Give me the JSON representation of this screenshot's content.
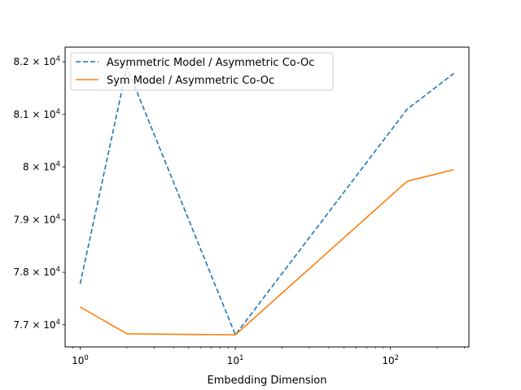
{
  "chart_data": {
    "type": "line",
    "xlabel": "Embedding Dimension",
    "ylabel": "",
    "xscale": "log",
    "xlim": [
      0.8,
      320
    ],
    "ylim": [
      76580,
      82280
    ],
    "x_ticks": [
      {
        "value": 1,
        "base": "10",
        "exp": "0"
      },
      {
        "value": 10,
        "base": "10",
        "exp": "1"
      },
      {
        "value": 100,
        "base": "10",
        "exp": "2"
      }
    ],
    "y_ticks": [
      {
        "value": 77000,
        "mantissa": "7.7",
        "base": "10",
        "exp": "4"
      },
      {
        "value": 78000,
        "mantissa": "7.8",
        "base": "10",
        "exp": "4"
      },
      {
        "value": 79000,
        "mantissa": "7.9",
        "base": "10",
        "exp": "4"
      },
      {
        "value": 80000,
        "mantissa": "8",
        "base": "10",
        "exp": "4"
      },
      {
        "value": 81000,
        "mantissa": "8.1",
        "base": "10",
        "exp": "4"
      },
      {
        "value": 82000,
        "mantissa": "8.2",
        "base": "10",
        "exp": "4"
      }
    ],
    "legend_position": "top-left",
    "grid": false,
    "series": [
      {
        "name": "Asymmetric Model / Asymmetric Co-Oc",
        "color": "#1f77b4",
        "dash": "dashed",
        "x": [
          1,
          2,
          10,
          128,
          256
        ],
        "y": [
          77780,
          81900,
          76810,
          81100,
          81780
        ]
      },
      {
        "name": "Sym Model / Asymmetric Co-Oc",
        "color": "#ff7f0e",
        "dash": "solid",
        "x": [
          1,
          2,
          10,
          128,
          256
        ],
        "y": [
          77340,
          76830,
          76810,
          79730,
          79950
        ]
      }
    ]
  }
}
